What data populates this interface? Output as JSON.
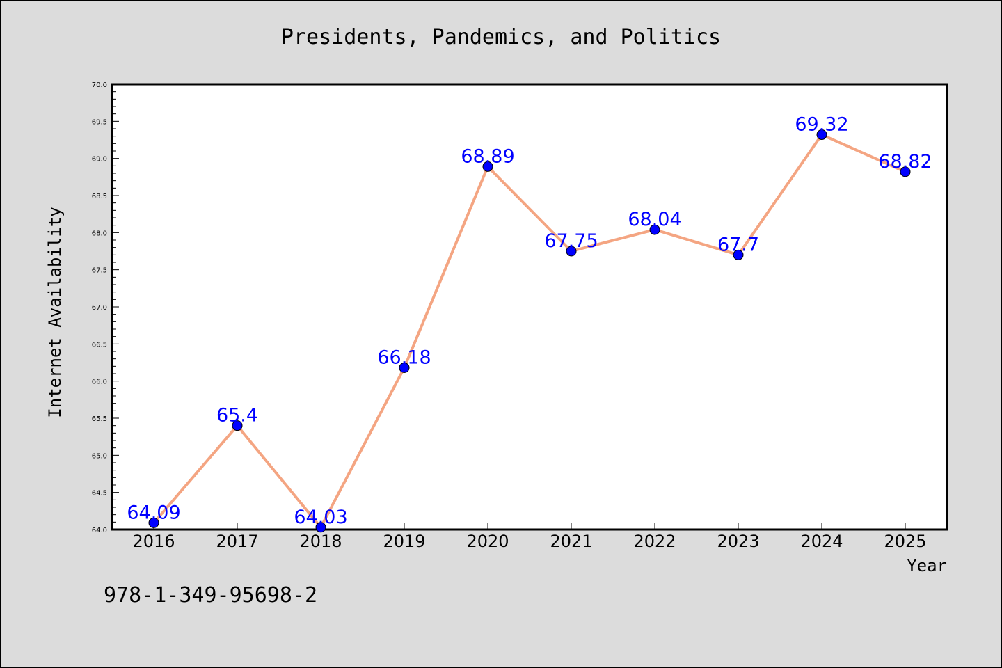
{
  "chart_data": {
    "type": "line",
    "title": "Presidents, Pandemics, and Politics",
    "xlabel": "Year",
    "ylabel": "Internet Availability",
    "categories": [
      "2016",
      "2017",
      "2018",
      "2019",
      "2020",
      "2021",
      "2022",
      "2023",
      "2024",
      "2025"
    ],
    "series": [
      {
        "values": [
          64.09,
          65.4,
          64.03,
          66.18,
          68.89,
          67.75,
          68.04,
          67.7,
          69.32,
          68.82
        ],
        "labels": [
          "64.09",
          "65.4",
          "64.03",
          "66.18",
          "68.89",
          "67.75",
          "68.04",
          "67.7",
          "69.32",
          "68.82"
        ],
        "line_color": "#f4a582",
        "marker_color": "#0000ff"
      }
    ],
    "ylim": [
      64.0,
      70.0
    ],
    "yticks": [
      "64.0",
      "64.5",
      "65.0",
      "65.5",
      "66.0",
      "66.5",
      "67.0",
      "67.5",
      "68.0",
      "68.5",
      "69.0",
      "69.5",
      "70.0"
    ],
    "grid": false,
    "label_color": "#0000ff",
    "background": "#dcdcdc",
    "plot_background": "#ffffff"
  },
  "footer_text": "978-1-349-95698-2"
}
